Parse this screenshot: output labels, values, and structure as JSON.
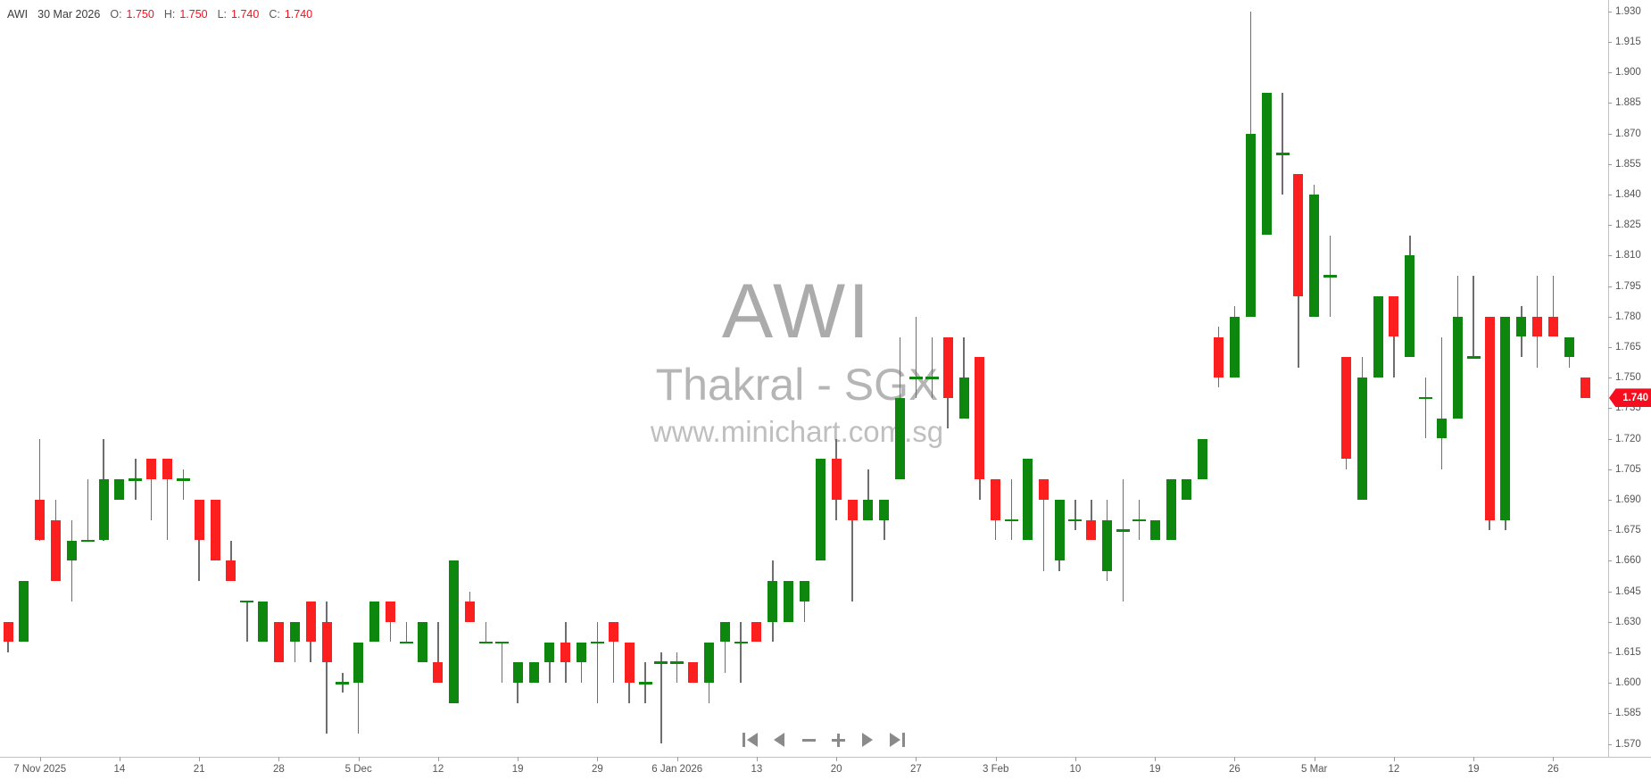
{
  "header": {
    "symbol": "AWI",
    "date": "30 Mar 2026",
    "o_label": "O:",
    "o_value": "1.750",
    "h_label": "H:",
    "h_value": "1.750",
    "l_label": "L:",
    "l_value": "1.740",
    "c_label": "C:",
    "c_value": "1.740"
  },
  "watermark": {
    "symbol": "AWI",
    "name": "Thakral - SGX",
    "site": "www.minichart.com.sg"
  },
  "price_badge": {
    "value": "1.740",
    "color": "#f60d1e"
  },
  "colors": {
    "up": "#0d870d",
    "down": "#fb1f1f",
    "wick": "#6e6e6e",
    "axis": "#c2c2c2",
    "tick_label": "#555555",
    "header_value_red": "#f60d1e",
    "watermark_gray": "#ababab"
  },
  "toolbar": {
    "buttons": [
      {
        "name": "skip-to-start",
        "icon": "skip-start-icon"
      },
      {
        "name": "step-back",
        "icon": "triangle-left-icon"
      },
      {
        "name": "zoom-out",
        "icon": "minus-icon"
      },
      {
        "name": "zoom-in",
        "icon": "plus-icon"
      },
      {
        "name": "step-forward",
        "icon": "triangle-right-icon"
      },
      {
        "name": "skip-to-end",
        "icon": "skip-end-icon"
      }
    ]
  },
  "chart_data": {
    "type": "candlestick",
    "symbol": "AWI",
    "company": "Thakral",
    "exchange": "SGX",
    "title": "AWI Thakral - SGX daily candlestick chart",
    "last_price": 1.74,
    "y_axis": {
      "min": 1.57,
      "max": 1.93,
      "step": 0.015,
      "side": "right",
      "labels": [
        "1.930",
        "1.915",
        "1.900",
        "1.885",
        "1.870",
        "1.855",
        "1.840",
        "1.825",
        "1.810",
        "1.795",
        "1.780",
        "1.765",
        "1.750",
        "1.735",
        "1.720",
        "1.705",
        "1.690",
        "1.675",
        "1.660",
        "1.645",
        "1.630",
        "1.615",
        "1.600",
        "1.585",
        "1.570"
      ]
    },
    "x_ticks": [
      {
        "i": 2,
        "label": "7 Nov 2025"
      },
      {
        "i": 7,
        "label": "14"
      },
      {
        "i": 12,
        "label": "21"
      },
      {
        "i": 17,
        "label": "28"
      },
      {
        "i": 22,
        "label": "5 Dec"
      },
      {
        "i": 27,
        "label": "12"
      },
      {
        "i": 32,
        "label": "19"
      },
      {
        "i": 37,
        "label": "29"
      },
      {
        "i": 42,
        "label": "6 Jan 2026"
      },
      {
        "i": 47,
        "label": "13"
      },
      {
        "i": 52,
        "label": "20"
      },
      {
        "i": 57,
        "label": "27"
      },
      {
        "i": 62,
        "label": "3 Feb"
      },
      {
        "i": 67,
        "label": "10"
      },
      {
        "i": 72,
        "label": "19"
      },
      {
        "i": 77,
        "label": "26"
      },
      {
        "i": 82,
        "label": "5 Mar"
      },
      {
        "i": 87,
        "label": "12"
      },
      {
        "i": 92,
        "label": "19"
      },
      {
        "i": 97,
        "label": "26"
      }
    ],
    "candles": [
      {
        "d": "5 Nov 2025",
        "o": 1.63,
        "h": 1.63,
        "l": 1.615,
        "c": 1.62
      },
      {
        "d": "6 Nov 2025",
        "o": 1.62,
        "h": 1.65,
        "l": 1.62,
        "c": 1.65
      },
      {
        "d": "7 Nov 2025",
        "o": 1.69,
        "h": 1.72,
        "l": 1.67,
        "c": 1.67
      },
      {
        "d": "10 Nov 2025",
        "o": 1.68,
        "h": 1.69,
        "l": 1.65,
        "c": 1.65
      },
      {
        "d": "11 Nov 2025",
        "o": 1.66,
        "h": 1.68,
        "l": 1.64,
        "c": 1.67
      },
      {
        "d": "12 Nov 2025",
        "o": 1.67,
        "h": 1.7,
        "l": 1.67,
        "c": 1.67
      },
      {
        "d": "13 Nov 2025",
        "o": 1.67,
        "h": 1.72,
        "l": 1.67,
        "c": 1.7
      },
      {
        "d": "14 Nov 2025",
        "o": 1.69,
        "h": 1.7,
        "l": 1.69,
        "c": 1.7
      },
      {
        "d": "17 Nov 2025",
        "o": 1.7,
        "h": 1.71,
        "l": 1.69,
        "c": 1.7
      },
      {
        "d": "18 Nov 2025",
        "o": 1.71,
        "h": 1.71,
        "l": 1.68,
        "c": 1.7
      },
      {
        "d": "19 Nov 2025",
        "o": 1.71,
        "h": 1.71,
        "l": 1.67,
        "c": 1.7
      },
      {
        "d": "20 Nov 2025",
        "o": 1.7,
        "h": 1.705,
        "l": 1.69,
        "c": 1.7
      },
      {
        "d": "21 Nov 2025",
        "o": 1.69,
        "h": 1.69,
        "l": 1.65,
        "c": 1.67
      },
      {
        "d": "24 Nov 2025",
        "o": 1.69,
        "h": 1.69,
        "l": 1.66,
        "c": 1.66
      },
      {
        "d": "25 Nov 2025",
        "o": 1.66,
        "h": 1.67,
        "l": 1.65,
        "c": 1.65
      },
      {
        "d": "26 Nov 2025",
        "o": 1.64,
        "h": 1.64,
        "l": 1.62,
        "c": 1.64
      },
      {
        "d": "27 Nov 2025",
        "o": 1.62,
        "h": 1.64,
        "l": 1.62,
        "c": 1.64
      },
      {
        "d": "28 Nov 2025",
        "o": 1.63,
        "h": 1.63,
        "l": 1.61,
        "c": 1.61
      },
      {
        "d": "1 Dec 2025",
        "o": 1.62,
        "h": 1.63,
        "l": 1.61,
        "c": 1.63
      },
      {
        "d": "2 Dec 2025",
        "o": 1.64,
        "h": 1.64,
        "l": 1.61,
        "c": 1.62
      },
      {
        "d": "3 Dec 2025",
        "o": 1.63,
        "h": 1.64,
        "l": 1.575,
        "c": 1.61
      },
      {
        "d": "4 Dec 2025",
        "o": 1.6,
        "h": 1.605,
        "l": 1.595,
        "c": 1.6
      },
      {
        "d": "5 Dec 2025",
        "o": 1.6,
        "h": 1.62,
        "l": 1.575,
        "c": 1.62
      },
      {
        "d": "8 Dec 2025",
        "o": 1.62,
        "h": 1.64,
        "l": 1.62,
        "c": 1.64
      },
      {
        "d": "9 Dec 2025",
        "o": 1.64,
        "h": 1.64,
        "l": 1.62,
        "c": 1.63
      },
      {
        "d": "10 Dec 2025",
        "o": 1.62,
        "h": 1.63,
        "l": 1.62,
        "c": 1.62
      },
      {
        "d": "11 Dec 2025",
        "o": 1.61,
        "h": 1.63,
        "l": 1.61,
        "c": 1.63
      },
      {
        "d": "12 Dec 2025",
        "o": 1.61,
        "h": 1.63,
        "l": 1.6,
        "c": 1.6
      },
      {
        "d": "15 Dec 2025",
        "o": 1.59,
        "h": 1.66,
        "l": 1.59,
        "c": 1.66
      },
      {
        "d": "16 Dec 2025",
        "o": 1.64,
        "h": 1.645,
        "l": 1.63,
        "c": 1.63
      },
      {
        "d": "17 Dec 2025",
        "o": 1.62,
        "h": 1.63,
        "l": 1.62,
        "c": 1.62
      },
      {
        "d": "18 Dec 2025",
        "o": 1.62,
        "h": 1.62,
        "l": 1.6,
        "c": 1.62
      },
      {
        "d": "19 Dec 2025",
        "o": 1.6,
        "h": 1.61,
        "l": 1.59,
        "c": 1.61
      },
      {
        "d": "22 Dec 2025",
        "o": 1.6,
        "h": 1.61,
        "l": 1.6,
        "c": 1.61
      },
      {
        "d": "23 Dec 2025",
        "o": 1.61,
        "h": 1.62,
        "l": 1.6,
        "c": 1.62
      },
      {
        "d": "24 Dec 2025",
        "o": 1.62,
        "h": 1.63,
        "l": 1.6,
        "c": 1.61
      },
      {
        "d": "26 Dec 2025",
        "o": 1.61,
        "h": 1.62,
        "l": 1.6,
        "c": 1.62
      },
      {
        "d": "29 Dec 2025",
        "o": 1.62,
        "h": 1.63,
        "l": 1.59,
        "c": 1.62
      },
      {
        "d": "30 Dec 2025",
        "o": 1.63,
        "h": 1.63,
        "l": 1.6,
        "c": 1.62
      },
      {
        "d": "31 Dec 2025",
        "o": 1.62,
        "h": 1.62,
        "l": 1.59,
        "c": 1.6
      },
      {
        "d": "2 Jan 2026",
        "o": 1.6,
        "h": 1.61,
        "l": 1.59,
        "c": 1.6
      },
      {
        "d": "5 Jan 2026",
        "o": 1.61,
        "h": 1.615,
        "l": 1.57,
        "c": 1.61
      },
      {
        "d": "6 Jan 2026",
        "o": 1.61,
        "h": 1.615,
        "l": 1.6,
        "c": 1.61
      },
      {
        "d": "7 Jan 2026",
        "o": 1.61,
        "h": 1.61,
        "l": 1.6,
        "c": 1.6
      },
      {
        "d": "8 Jan 2026",
        "o": 1.6,
        "h": 1.62,
        "l": 1.59,
        "c": 1.62
      },
      {
        "d": "9 Jan 2026",
        "o": 1.62,
        "h": 1.63,
        "l": 1.605,
        "c": 1.63
      },
      {
        "d": "12 Jan 2026",
        "o": 1.62,
        "h": 1.63,
        "l": 1.6,
        "c": 1.62
      },
      {
        "d": "13 Jan 2026",
        "o": 1.63,
        "h": 1.63,
        "l": 1.62,
        "c": 1.62
      },
      {
        "d": "14 Jan 2026",
        "o": 1.63,
        "h": 1.66,
        "l": 1.62,
        "c": 1.65
      },
      {
        "d": "15 Jan 2026",
        "o": 1.63,
        "h": 1.65,
        "l": 1.63,
        "c": 1.65
      },
      {
        "d": "16 Jan 2026",
        "o": 1.64,
        "h": 1.65,
        "l": 1.63,
        "c": 1.65
      },
      {
        "d": "19 Jan 2026",
        "o": 1.66,
        "h": 1.71,
        "l": 1.66,
        "c": 1.71
      },
      {
        "d": "20 Jan 2026",
        "o": 1.71,
        "h": 1.72,
        "l": 1.68,
        "c": 1.69
      },
      {
        "d": "21 Jan 2026",
        "o": 1.69,
        "h": 1.69,
        "l": 1.64,
        "c": 1.68
      },
      {
        "d": "22 Jan 2026",
        "o": 1.68,
        "h": 1.705,
        "l": 1.68,
        "c": 1.69
      },
      {
        "d": "23 Jan 2026",
        "o": 1.68,
        "h": 1.69,
        "l": 1.67,
        "c": 1.69
      },
      {
        "d": "26 Jan 2026",
        "o": 1.7,
        "h": 1.77,
        "l": 1.7,
        "c": 1.74
      },
      {
        "d": "27 Jan 2026",
        "o": 1.75,
        "h": 1.78,
        "l": 1.74,
        "c": 1.75
      },
      {
        "d": "28 Jan 2026",
        "o": 1.75,
        "h": 1.77,
        "l": 1.74,
        "c": 1.75
      },
      {
        "d": "29 Jan 2026",
        "o": 1.77,
        "h": 1.77,
        "l": 1.725,
        "c": 1.74
      },
      {
        "d": "30 Jan 2026",
        "o": 1.73,
        "h": 1.77,
        "l": 1.73,
        "c": 1.75
      },
      {
        "d": "2 Feb 2026",
        "o": 1.76,
        "h": 1.76,
        "l": 1.69,
        "c": 1.7
      },
      {
        "d": "3 Feb 2026",
        "o": 1.7,
        "h": 1.7,
        "l": 1.67,
        "c": 1.68
      },
      {
        "d": "4 Feb 2026",
        "o": 1.68,
        "h": 1.7,
        "l": 1.67,
        "c": 1.68
      },
      {
        "d": "5 Feb 2026",
        "o": 1.67,
        "h": 1.71,
        "l": 1.67,
        "c": 1.71
      },
      {
        "d": "6 Feb 2026",
        "o": 1.7,
        "h": 1.7,
        "l": 1.655,
        "c": 1.69
      },
      {
        "d": "9 Feb 2026",
        "o": 1.66,
        "h": 1.69,
        "l": 1.655,
        "c": 1.69
      },
      {
        "d": "10 Feb 2026",
        "o": 1.68,
        "h": 1.69,
        "l": 1.675,
        "c": 1.68
      },
      {
        "d": "11 Feb 2026",
        "o": 1.68,
        "h": 1.69,
        "l": 1.67,
        "c": 1.67
      },
      {
        "d": "12 Feb 2026",
        "o": 1.655,
        "h": 1.69,
        "l": 1.65,
        "c": 1.68
      },
      {
        "d": "13 Feb 2026",
        "o": 1.675,
        "h": 1.7,
        "l": 1.64,
        "c": 1.675
      },
      {
        "d": "16 Feb 2026",
        "o": 1.68,
        "h": 1.69,
        "l": 1.67,
        "c": 1.68
      },
      {
        "d": "19 Feb 2026",
        "o": 1.67,
        "h": 1.68,
        "l": 1.67,
        "c": 1.68
      },
      {
        "d": "20 Feb 2026",
        "o": 1.67,
        "h": 1.7,
        "l": 1.67,
        "c": 1.7
      },
      {
        "d": "23 Feb 2026",
        "o": 1.69,
        "h": 1.7,
        "l": 1.69,
        "c": 1.7
      },
      {
        "d": "24 Feb 2026",
        "o": 1.7,
        "h": 1.72,
        "l": 1.7,
        "c": 1.72
      },
      {
        "d": "25 Feb 2026",
        "o": 1.77,
        "h": 1.775,
        "l": 1.745,
        "c": 1.75
      },
      {
        "d": "26 Feb 2026",
        "o": 1.75,
        "h": 1.785,
        "l": 1.75,
        "c": 1.78
      },
      {
        "d": "27 Feb 2026",
        "o": 1.78,
        "h": 1.93,
        "l": 1.78,
        "c": 1.87
      },
      {
        "d": "2 Mar 2026",
        "o": 1.82,
        "h": 1.89,
        "l": 1.82,
        "c": 1.89
      },
      {
        "d": "3 Mar 2026",
        "o": 1.86,
        "h": 1.89,
        "l": 1.84,
        "c": 1.86
      },
      {
        "d": "4 Mar 2026",
        "o": 1.85,
        "h": 1.85,
        "l": 1.755,
        "c": 1.79
      },
      {
        "d": "5 Mar 2026",
        "o": 1.78,
        "h": 1.845,
        "l": 1.78,
        "c": 1.84
      },
      {
        "d": "6 Mar 2026",
        "o": 1.8,
        "h": 1.82,
        "l": 1.78,
        "c": 1.8
      },
      {
        "d": "9 Mar 2026",
        "o": 1.76,
        "h": 1.76,
        "l": 1.705,
        "c": 1.71
      },
      {
        "d": "10 Mar 2026",
        "o": 1.69,
        "h": 1.76,
        "l": 1.69,
        "c": 1.75
      },
      {
        "d": "11 Mar 2026",
        "o": 1.75,
        "h": 1.79,
        "l": 1.75,
        "c": 1.79
      },
      {
        "d": "12 Mar 2026",
        "o": 1.79,
        "h": 1.79,
        "l": 1.75,
        "c": 1.77
      },
      {
        "d": "13 Mar 2026",
        "o": 1.76,
        "h": 1.82,
        "l": 1.76,
        "c": 1.81
      },
      {
        "d": "16 Mar 2026",
        "o": 1.74,
        "h": 1.75,
        "l": 1.72,
        "c": 1.74
      },
      {
        "d": "17 Mar 2026",
        "o": 1.72,
        "h": 1.77,
        "l": 1.705,
        "c": 1.73
      },
      {
        "d": "18 Mar 2026",
        "o": 1.73,
        "h": 1.8,
        "l": 1.73,
        "c": 1.78
      },
      {
        "d": "19 Mar 2026",
        "o": 1.76,
        "h": 1.8,
        "l": 1.76,
        "c": 1.76
      },
      {
        "d": "20 Mar 2026",
        "o": 1.78,
        "h": 1.78,
        "l": 1.675,
        "c": 1.68
      },
      {
        "d": "23 Mar 2026",
        "o": 1.68,
        "h": 1.78,
        "l": 1.675,
        "c": 1.78
      },
      {
        "d": "24 Mar 2026",
        "o": 1.77,
        "h": 1.785,
        "l": 1.76,
        "c": 1.78
      },
      {
        "d": "25 Mar 2026",
        "o": 1.78,
        "h": 1.8,
        "l": 1.755,
        "c": 1.77
      },
      {
        "d": "26 Mar 2026",
        "o": 1.78,
        "h": 1.8,
        "l": 1.77,
        "c": 1.77
      },
      {
        "d": "27 Mar 2026",
        "o": 1.76,
        "h": 1.77,
        "l": 1.755,
        "c": 1.77
      },
      {
        "d": "30 Mar 2026",
        "o": 1.75,
        "h": 1.75,
        "l": 1.74,
        "c": 1.74
      }
    ]
  }
}
